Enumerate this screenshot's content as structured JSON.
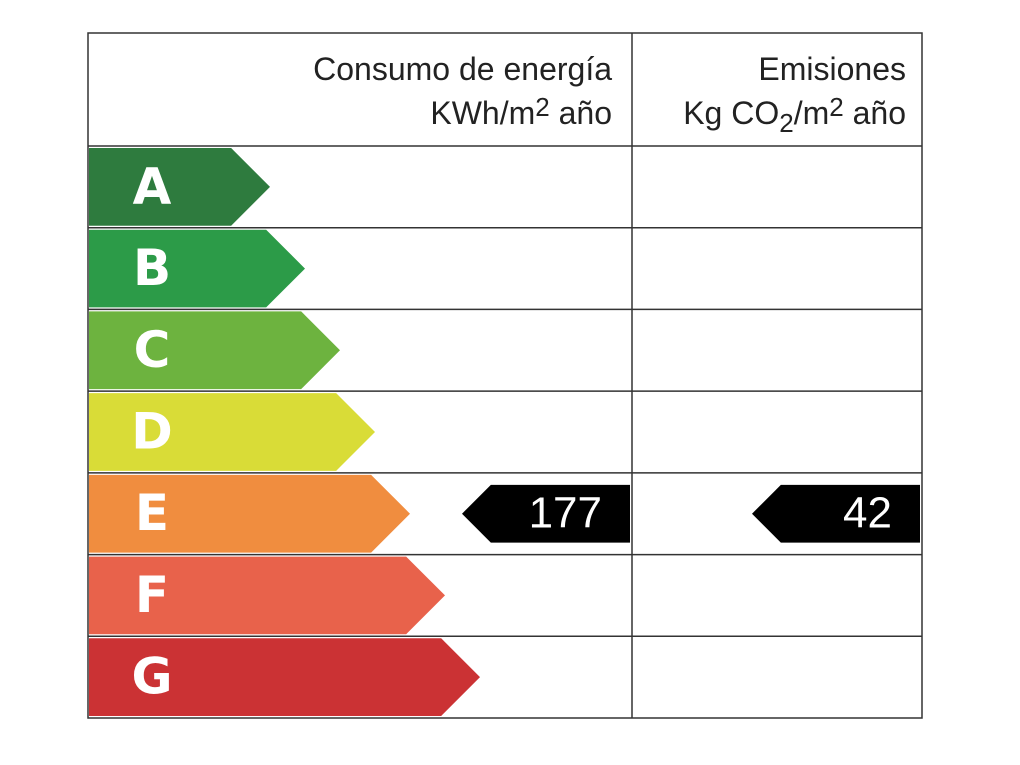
{
  "header": {
    "energy_title": "Consumo de energía",
    "energy_unit": [
      "KWh/m",
      "2",
      " año"
    ],
    "emissions_title": "Emisiones",
    "emissions_unit": [
      "Kg CO",
      "2",
      "/m",
      "2",
      " año"
    ]
  },
  "classes": [
    {
      "letter": "A",
      "color": "#2e7b3e"
    },
    {
      "letter": "B",
      "color": "#2c9b48"
    },
    {
      "letter": "C",
      "color": "#6db33f"
    },
    {
      "letter": "D",
      "color": "#d9dc37"
    },
    {
      "letter": "E",
      "color": "#f08d3f"
    },
    {
      "letter": "F",
      "color": "#e8624b"
    },
    {
      "letter": "G",
      "color": "#cb3234"
    }
  ],
  "energy_rating": {
    "class": "E",
    "value": 177
  },
  "emissions_rating": {
    "class": "E",
    "value": 42
  }
}
